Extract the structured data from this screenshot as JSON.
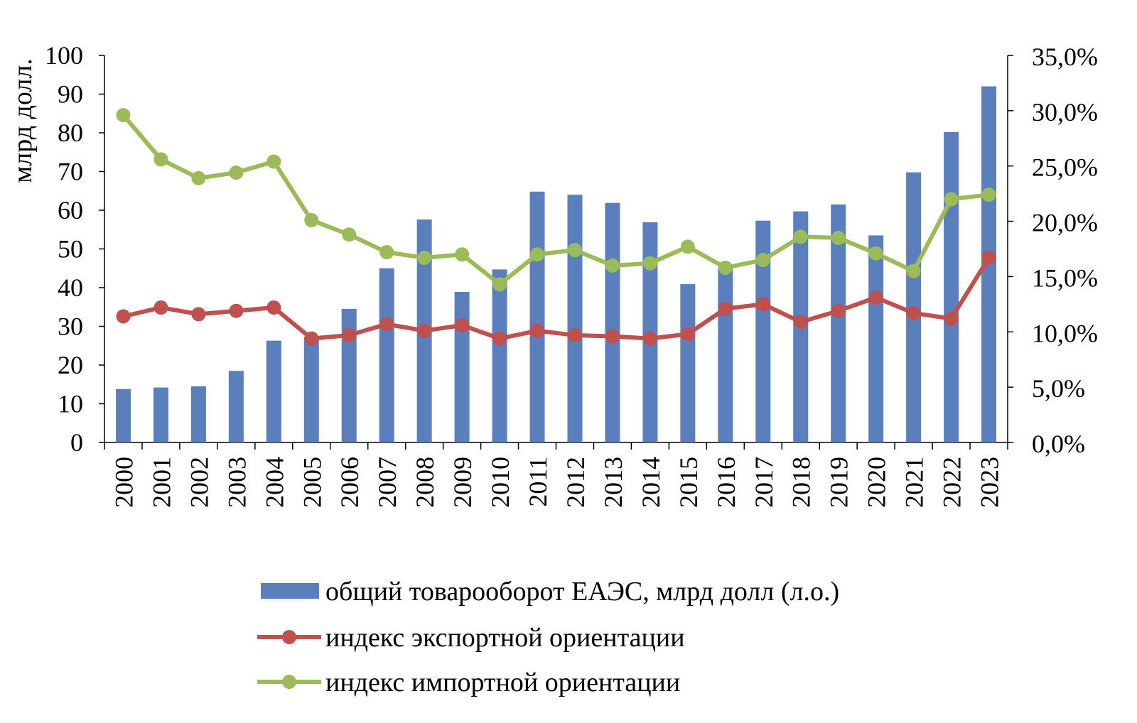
{
  "chart_data": {
    "type": "bar",
    "title": "",
    "categories": [
      "2000",
      "2001",
      "2002",
      "2003",
      "2004",
      "2005",
      "2006",
      "2007",
      "2008",
      "2009",
      "2010",
      "2011",
      "2012",
      "2013",
      "2014",
      "2015",
      "2016",
      "2017",
      "2018",
      "2019",
      "2020",
      "2021",
      "2022",
      "2023"
    ],
    "ylabel": "млрд долл.",
    "y_left": {
      "range": [
        0,
        100
      ],
      "ticks": [
        "0",
        "10",
        "20",
        "30",
        "40",
        "50",
        "60",
        "70",
        "80",
        "90",
        "100"
      ]
    },
    "y_right": {
      "range": [
        0,
        35
      ],
      "ticks": [
        "0,0%",
        "5,0%",
        "10,0%",
        "15,0%",
        "20,0%",
        "25,0%",
        "30,0%",
        "35,0%"
      ]
    },
    "series": [
      {
        "name": "общий товарооборот ЕАЭС, млрд долл (л.о.)",
        "type": "bar",
        "axis": "left",
        "color": "#5b7fbc",
        "values": [
          13.8,
          14.2,
          14.5,
          18.5,
          26.3,
          27.2,
          34.5,
          45.0,
          57.6,
          38.9,
          44.7,
          64.8,
          64.0,
          61.9,
          56.9,
          40.9,
          45.1,
          57.3,
          59.7,
          61.5,
          53.5,
          69.8,
          80.2,
          92.0
        ]
      },
      {
        "name": "индекс экспортной ориентации",
        "type": "line",
        "axis": "right",
        "color": "#c0504d",
        "values": [
          11.4,
          12.2,
          11.6,
          11.9,
          12.2,
          9.4,
          9.7,
          10.7,
          10.1,
          10.6,
          9.4,
          10.1,
          9.7,
          9.6,
          9.4,
          9.8,
          12.1,
          12.5,
          10.9,
          11.9,
          13.1,
          11.7,
          11.2,
          16.7
        ]
      },
      {
        "name": "индекс импортной ориентации",
        "type": "line",
        "axis": "right",
        "color": "#9bbb59",
        "values": [
          29.6,
          25.6,
          23.9,
          24.4,
          25.4,
          20.1,
          18.8,
          17.2,
          16.7,
          17.0,
          14.3,
          17.0,
          17.4,
          16.0,
          16.2,
          17.7,
          15.8,
          16.5,
          18.6,
          18.5,
          17.1,
          15.5,
          22.0,
          22.4
        ]
      }
    ],
    "grid": false,
    "legend": "bottom"
  }
}
